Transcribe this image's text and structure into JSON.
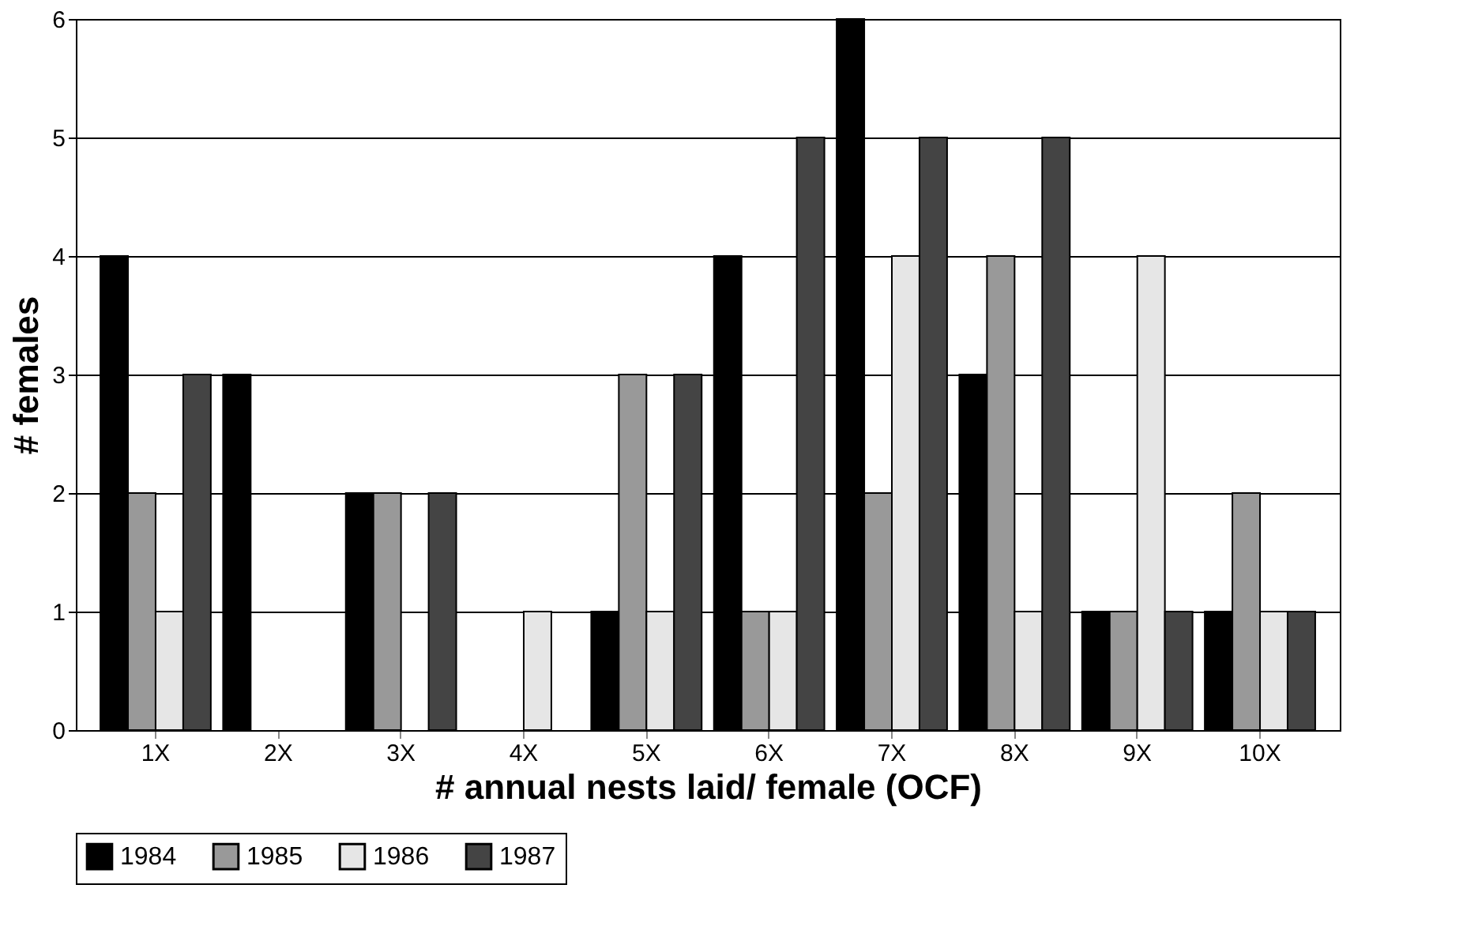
{
  "chart_data": {
    "type": "bar",
    "xlabel": "# annual nests laid/ female (OCF)",
    "ylabel": "# females",
    "categories": [
      "1X",
      "2X",
      "3X",
      "4X",
      "5X",
      "6X",
      "7X",
      "8X",
      "9X",
      "10X"
    ],
    "series": [
      {
        "name": "1984",
        "color": "#000000",
        "values": [
          4,
          3,
          2,
          0,
          1,
          4,
          6,
          3,
          1,
          1
        ]
      },
      {
        "name": "1985",
        "color": "#999999",
        "values": [
          2,
          0,
          2,
          0,
          3,
          1,
          2,
          4,
          1,
          2
        ]
      },
      {
        "name": "1986",
        "color": "#e6e6e6",
        "values": [
          1,
          0,
          0,
          1,
          1,
          1,
          4,
          1,
          4,
          1
        ]
      },
      {
        "name": "1987",
        "color": "#444444",
        "values": [
          3,
          0,
          2,
          0,
          3,
          5,
          5,
          5,
          1,
          1
        ]
      }
    ],
    "ylim": [
      0,
      6
    ],
    "yticks": [
      0,
      1,
      2,
      3,
      4,
      5,
      6
    ],
    "grid": "y",
    "legend": "bottom"
  }
}
